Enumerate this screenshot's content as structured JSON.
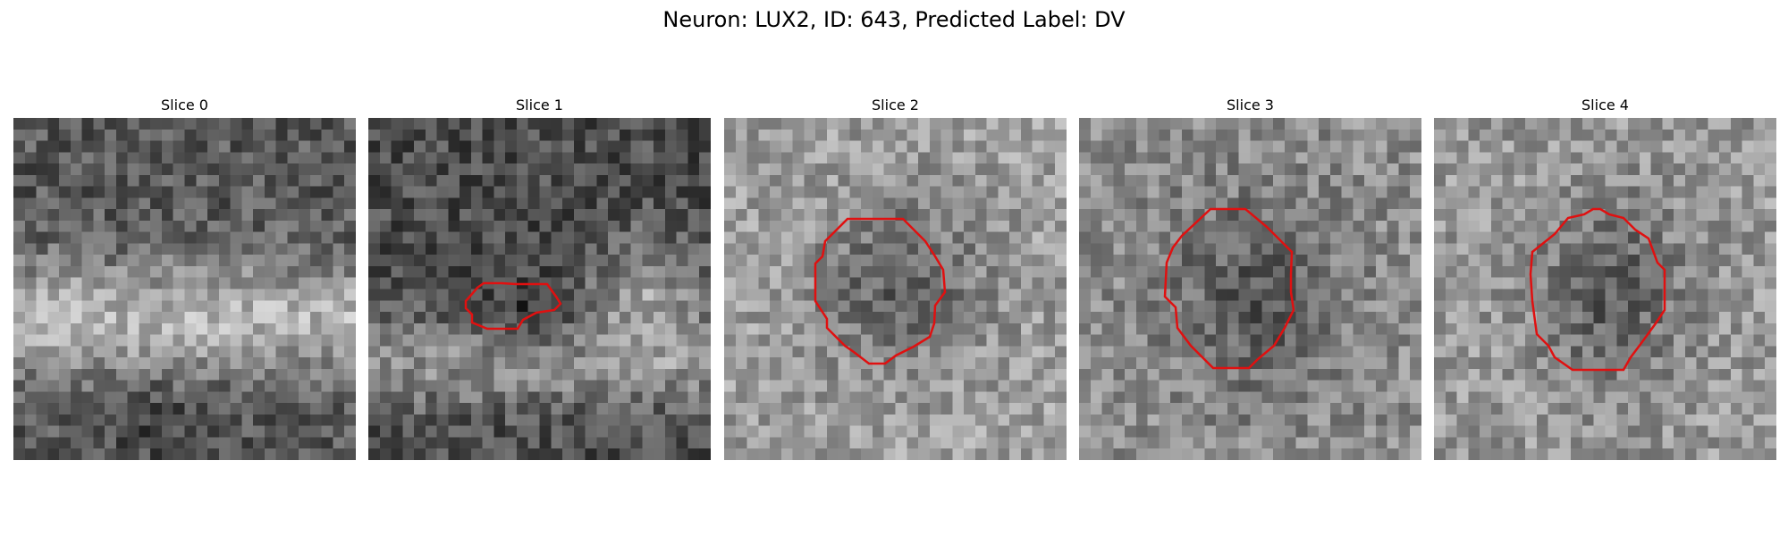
{
  "figure": {
    "title": "Neuron: LUX2, ID: 643, Predicted Label: DV"
  },
  "colors": {
    "contour": "#e01010",
    "colormap": "grayscale"
  },
  "panels": [
    {
      "label": "Slice 0",
      "has_contour": false,
      "seed": 11
    },
    {
      "label": "Slice 1",
      "has_contour": true,
      "seed": 23
    },
    {
      "label": "Slice 2",
      "has_contour": true,
      "seed": 37
    },
    {
      "label": "Slice 3",
      "has_contour": true,
      "seed": 51
    },
    {
      "label": "Slice 4",
      "has_contour": true,
      "seed": 67
    }
  ]
}
